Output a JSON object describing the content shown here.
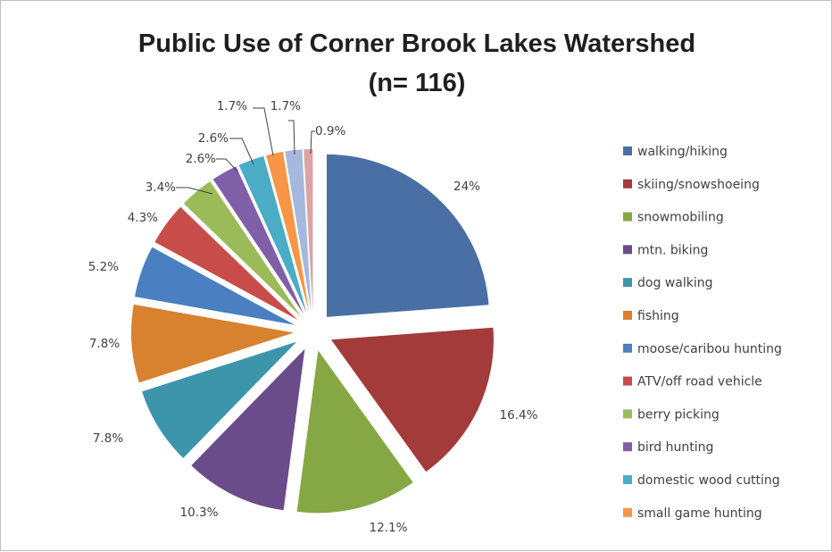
{
  "chart_data": {
    "type": "pie",
    "title": "Public Use of Corner Brook Lakes Watershed",
    "subtitle": "(n= 116)",
    "legend_position": "right",
    "slices": [
      {
        "label": "walking/hiking",
        "value": 24,
        "value_label": "24%",
        "color": "#4a6fa5"
      },
      {
        "label": "skiing/snowshoeing",
        "value": 16.4,
        "value_label": "16.4%",
        "color": "#a23b3a"
      },
      {
        "label": "snowmobiling",
        "value": 12.1,
        "value_label": "12.1%",
        "color": "#86a844"
      },
      {
        "label": "mtn. biking",
        "value": 10.3,
        "value_label": "10.3%",
        "color": "#6b4c8a"
      },
      {
        "label": "dog walking",
        "value": 7.8,
        "value_label": "7.8%",
        "color": "#3d95ac"
      },
      {
        "label": "fishing",
        "value": 7.8,
        "value_label": "7.8%",
        "color": "#d8812f"
      },
      {
        "label": "moose/caribou hunting",
        "value": 5.2,
        "value_label": "5.2%",
        "color": "#4a7fc1"
      },
      {
        "label": "ATV/off road vehicle",
        "value": 4.3,
        "value_label": "4.3%",
        "color": "#c84d4a"
      },
      {
        "label": "berry picking",
        "value": 3.4,
        "value_label": "3.4%",
        "color": "#9bbb59"
      },
      {
        "label": "bird hunting",
        "value": 2.6,
        "value_label": "2.6%",
        "color": "#7f5fa8"
      },
      {
        "label": "domestic wood cutting",
        "value": 2.6,
        "value_label": "2.6%",
        "color": "#4bacc6"
      },
      {
        "label": "small game hunting",
        "value": 1.7,
        "value_label": "1.7%",
        "color": "#f79646"
      },
      {
        "label": "",
        "value": 1.7,
        "value_label": "1.7%",
        "color": "#a4b9dd"
      },
      {
        "label": "",
        "value": 0.9,
        "value_label": "0.9%",
        "color": "#dba3a3"
      }
    ]
  }
}
